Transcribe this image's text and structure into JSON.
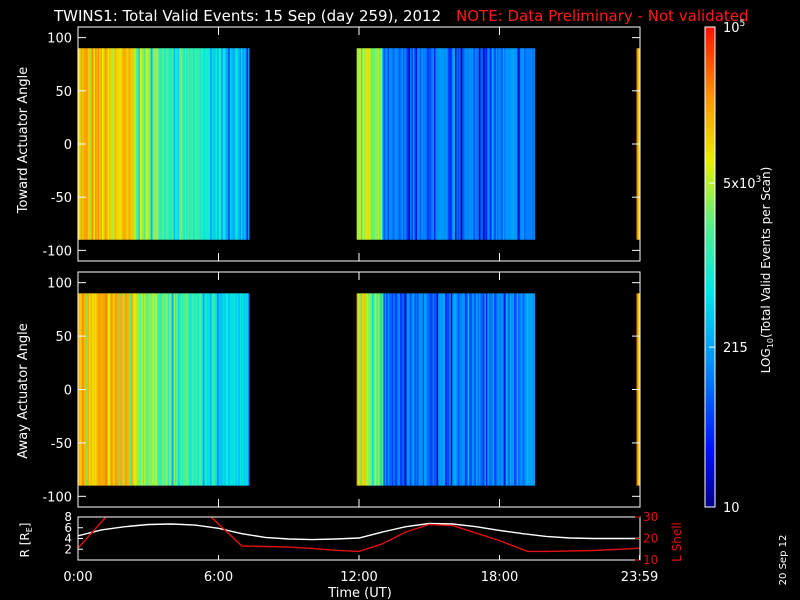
{
  "title": "TWINS1: Total Valid Events: 15 Sep (day 259), 2012",
  "note": "NOTE: Data Preliminary - Not validated",
  "date_stamp": "20 Sep 12",
  "colors": {
    "note": "#ff1a1a",
    "r_line": "#ffffff",
    "lshell_line": "#e01010",
    "frame": "#ffffff"
  },
  "chart_data": [
    {
      "type": "heatmap",
      "panel": "toward",
      "ylabel": "Toward Actuator Angle",
      "yticks": [
        100,
        50,
        0,
        -50,
        -100
      ],
      "ylim": [
        -110,
        110
      ],
      "xlim": [
        0,
        24
      ],
      "data_angle_range": [
        -90,
        90
      ],
      "coverage_hours": [
        [
          0.0,
          7.3
        ],
        [
          11.9,
          19.5
        ],
        [
          23.85,
          24.0
        ]
      ],
      "scale": "log"
    },
    {
      "type": "heatmap",
      "panel": "away",
      "ylabel": "Away Actuator Angle",
      "yticks": [
        100,
        50,
        0,
        -50,
        -100
      ],
      "ylim": [
        -110,
        110
      ],
      "xlim": [
        0,
        24
      ],
      "data_angle_range": [
        -90,
        90
      ],
      "coverage_hours": [
        [
          0.0,
          7.3
        ],
        [
          11.9,
          19.5
        ],
        [
          23.85,
          24.0
        ]
      ],
      "scale": "log"
    },
    {
      "type": "line",
      "panel": "orbit",
      "ylabel_left": "R [R",
      "ylabel_left_sub": "E",
      "ylabel_left_end": "]",
      "ylabel_right": "L Shell",
      "yticks_left": [
        2,
        4,
        6,
        8
      ],
      "yticks_right": [
        10,
        20,
        30
      ],
      "ylim_left": [
        0,
        8
      ],
      "ylim_right": [
        10,
        30
      ],
      "xlabel": "Time (UT)",
      "xticks": [
        "0:00",
        "6:00",
        "12:00",
        "18:00",
        "23:59"
      ],
      "xtick_hours": [
        0,
        6,
        12,
        18,
        23.98
      ],
      "xlim": [
        0,
        24
      ],
      "series": [
        {
          "axis": "left",
          "x": [
            0,
            1,
            2,
            3,
            4,
            5,
            6,
            7,
            8,
            9,
            10,
            11,
            12,
            13,
            14,
            15,
            16,
            17,
            18,
            19,
            20,
            21,
            22,
            23,
            24
          ],
          "y": [
            4.5,
            5.6,
            6.2,
            6.6,
            6.7,
            6.5,
            5.9,
            4.9,
            4.2,
            3.9,
            3.8,
            3.9,
            4.1,
            5.2,
            6.2,
            6.8,
            6.7,
            6.2,
            5.5,
            4.9,
            4.4,
            4.1,
            4.0,
            4.0,
            4.0
          ]
        },
        {
          "axis": "right",
          "x": [
            0,
            1.6,
            5.2,
            7.0,
            8.0,
            9.0,
            10.0,
            11.0,
            12.0,
            13.0,
            14.0,
            15.0,
            16.0,
            17.0,
            18.0,
            19.2,
            20.0,
            22.0,
            24.0
          ],
          "y": [
            15.5,
            35,
            35,
            16.5,
            16.3,
            16.0,
            15.4,
            14.5,
            14.0,
            17.5,
            23.0,
            26.5,
            26.0,
            22.5,
            19.0,
            14.0,
            14.0,
            14.4,
            15.5
          ]
        }
      ]
    },
    {
      "type": "colorbar",
      "label": "LOG",
      "label_sub": "10",
      "label_rest": "(Total Valid Events per Scan)",
      "ticks": [
        "10",
        "215",
        "5x10",
        "10"
      ],
      "tick_superscripts": [
        "",
        "",
        "3",
        "5"
      ],
      "tick_values": [
        10,
        215,
        5000,
        100000
      ],
      "range": [
        10,
        100000
      ]
    }
  ]
}
